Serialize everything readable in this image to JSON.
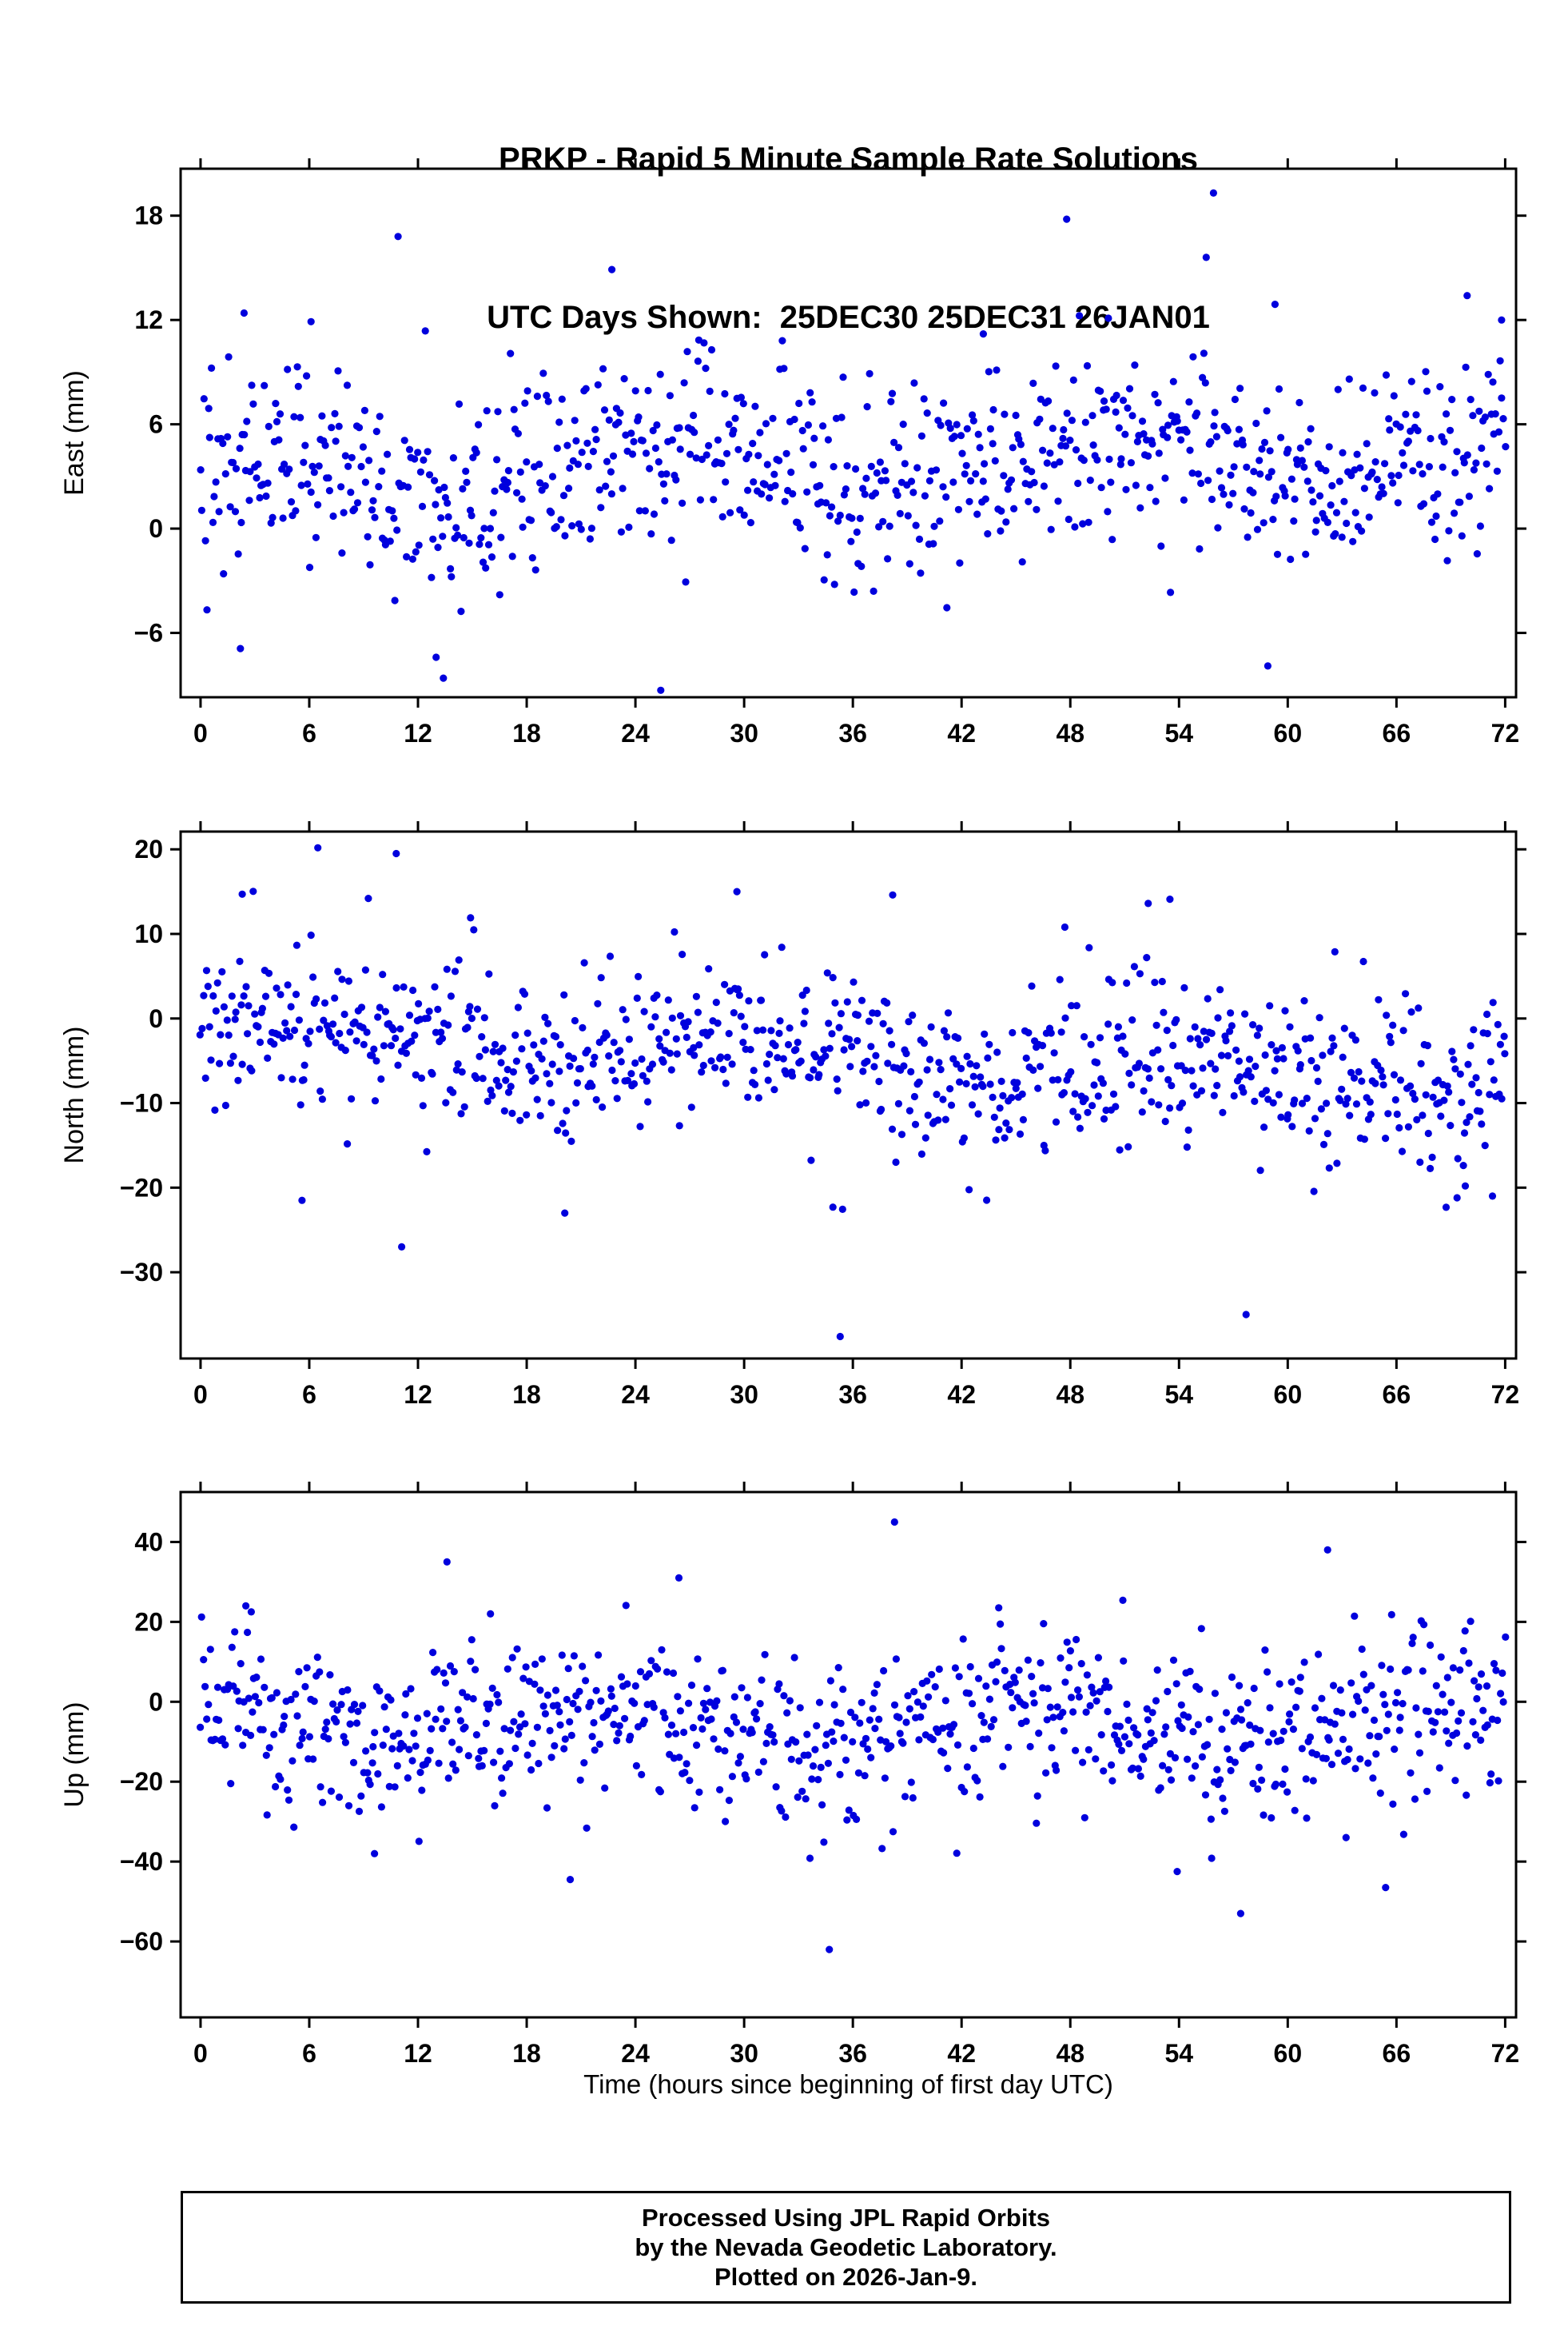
{
  "title": {
    "line1": "PRKP - Rapid 5 Minute Sample Rate Solutions",
    "line2": "UTC Days Shown:  25DEC30 25DEC31 26JAN01"
  },
  "station": "PRKP",
  "utc_days_shown": [
    "25DEC30",
    "25DEC31",
    "26JAN01"
  ],
  "x": {
    "label": "Time (hours since beginning of first day UTC)",
    "ticks": [
      0,
      6,
      12,
      18,
      24,
      30,
      36,
      42,
      48,
      54,
      60,
      66,
      72
    ],
    "axis_range": [
      -1.1,
      72.6
    ],
    "data_range_hours": [
      0,
      72
    ],
    "sample_interval_minutes": 5
  },
  "style": {
    "point_color": "#0000dd",
    "axis_color": "#000000",
    "point_radius": 4.6
  },
  "chart_data": [
    {
      "type": "scatter",
      "name": "east",
      "ylabel": "East (mm)",
      "units": "mm",
      "ylim": [
        -9.7,
        20.7
      ],
      "yticks": [
        -6,
        0,
        6,
        12,
        18
      ],
      "n_points": 838,
      "seed": 42,
      "signal": {
        "baseline": 2.9,
        "trend_per_hour": 0.02,
        "daily_amplitude": 1.4,
        "phase_rad": 1.05,
        "noise_std": 2.7,
        "heavy_tail_prob": 0.05,
        "heavy_tail_scale": 1.8
      },
      "outliers": [
        [
          2.2,
          -6.9
        ],
        [
          2.4,
          12.4
        ],
        [
          6.1,
          11.9
        ],
        [
          10.9,
          16.8
        ],
        [
          13.0,
          -7.4
        ],
        [
          13.4,
          -8.6
        ],
        [
          22.7,
          14.9
        ],
        [
          25.4,
          -9.3
        ],
        [
          43.2,
          11.2
        ],
        [
          47.8,
          17.8
        ],
        [
          50.1,
          12.1
        ],
        [
          55.5,
          15.6
        ],
        [
          55.9,
          19.3
        ],
        [
          58.9,
          -7.9
        ],
        [
          59.3,
          12.9
        ],
        [
          69.9,
          13.4
        ],
        [
          71.8,
          12.0
        ]
      ]
    },
    {
      "type": "scatter",
      "name": "north",
      "ylabel": "North (mm)",
      "units": "mm",
      "ylim": [
        -40.2,
        22.1
      ],
      "yticks": [
        -30,
        -20,
        -10,
        0,
        10,
        20
      ],
      "n_points": 838,
      "seed": 7,
      "signal": {
        "baseline": -1.6,
        "trend_per_hour": -0.075,
        "daily_amplitude": 2.2,
        "phase_rad": 0.0,
        "noise_std": 4.6,
        "heavy_tail_prob": 0.05,
        "heavy_tail_scale": 1.8
      },
      "outliers": [
        [
          2.3,
          14.7
        ],
        [
          5.6,
          -21.5
        ],
        [
          10.8,
          19.5
        ],
        [
          11.1,
          -27.0
        ],
        [
          14.9,
          11.9
        ],
        [
          20.1,
          -23.0
        ],
        [
          29.6,
          15.0
        ],
        [
          34.9,
          -22.3
        ],
        [
          35.3,
          -37.6
        ],
        [
          38.2,
          14.6
        ],
        [
          47.7,
          10.8
        ],
        [
          52.3,
          13.6
        ],
        [
          53.5,
          14.1
        ],
        [
          57.7,
          -35.0
        ],
        [
          69.8,
          -19.8
        ],
        [
          71.3,
          -21.0
        ]
      ]
    },
    {
      "type": "scatter",
      "name": "up",
      "ylabel": "Up (mm)",
      "units": "mm",
      "ylim": [
        -79.0,
        52.5
      ],
      "yticks": [
        -60,
        -40,
        -20,
        0,
        20,
        40
      ],
      "n_points": 838,
      "seed": 99,
      "signal": {
        "baseline": -5.5,
        "trend_per_hour": -0.005,
        "daily_amplitude": 4.5,
        "phase_rad": 2.36,
        "noise_std": 10.0,
        "heavy_tail_prob": 0.05,
        "heavy_tail_scale": 1.8
      },
      "outliers": [
        [
          2.5,
          24.0
        ],
        [
          2.8,
          22.5
        ],
        [
          9.6,
          -38.0
        ],
        [
          13.6,
          35.0
        ],
        [
          16.0,
          22.0
        ],
        [
          20.4,
          -44.5
        ],
        [
          26.4,
          31.0
        ],
        [
          34.7,
          -62.0
        ],
        [
          38.3,
          45.0
        ],
        [
          50.9,
          25.4
        ],
        [
          53.9,
          -42.5
        ],
        [
          57.4,
          -53.0
        ],
        [
          62.2,
          38.0
        ],
        [
          65.4,
          -46.5
        ]
      ]
    }
  ],
  "footer": {
    "line1": "Processed Using JPL Rapid Orbits",
    "line2": "by the Nevada Geodetic Laboratory.",
    "line3": "Plotted on 2026-Jan-9."
  }
}
